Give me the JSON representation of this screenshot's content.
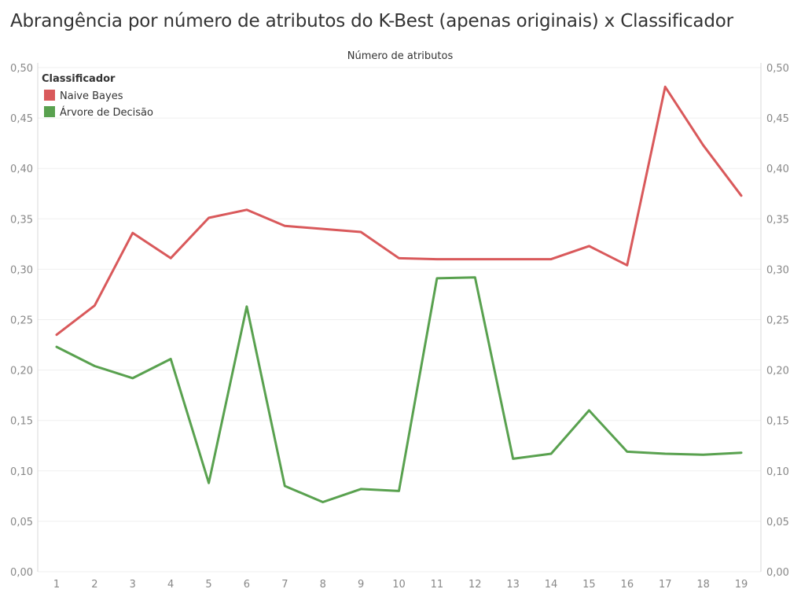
{
  "chart_data": {
    "type": "line",
    "title": "Abrangência por número de atributos do K-Best (apenas originais) x Classificador",
    "xlabel": "Número de atributos",
    "ylabel": "",
    "x": [
      "1",
      "2",
      "3",
      "4",
      "5",
      "6",
      "7",
      "8",
      "9",
      "10",
      "11",
      "12",
      "13",
      "14",
      "15",
      "16",
      "17",
      "18",
      "19"
    ],
    "ylim": [
      0,
      0.5
    ],
    "yticks": [
      "0,00",
      "0,05",
      "0,10",
      "0,15",
      "0,20",
      "0,25",
      "0,30",
      "0,35",
      "0,40",
      "0,45",
      "0,50"
    ],
    "ytick_values": [
      0,
      0.05,
      0.1,
      0.15,
      0.2,
      0.25,
      0.3,
      0.35,
      0.4,
      0.45,
      0.5
    ],
    "grid": true,
    "legend": {
      "title": "Classificador",
      "position": "top-left"
    },
    "series": [
      {
        "name": "Naive Bayes",
        "color": "#d9595b",
        "values": [
          0.235,
          0.264,
          0.336,
          0.311,
          0.351,
          0.359,
          0.343,
          0.34,
          0.337,
          0.311,
          0.31,
          0.31,
          0.31,
          0.31,
          0.323,
          0.304,
          0.481,
          0.423,
          0.373
        ]
      },
      {
        "name": "Árvore de Decisão",
        "color": "#59a14f",
        "values": [
          0.223,
          0.204,
          0.192,
          0.211,
          0.088,
          0.263,
          0.085,
          0.069,
          0.082,
          0.08,
          0.291,
          0.292,
          0.112,
          0.117,
          0.16,
          0.119,
          0.117,
          0.116,
          0.118
        ]
      }
    ]
  }
}
